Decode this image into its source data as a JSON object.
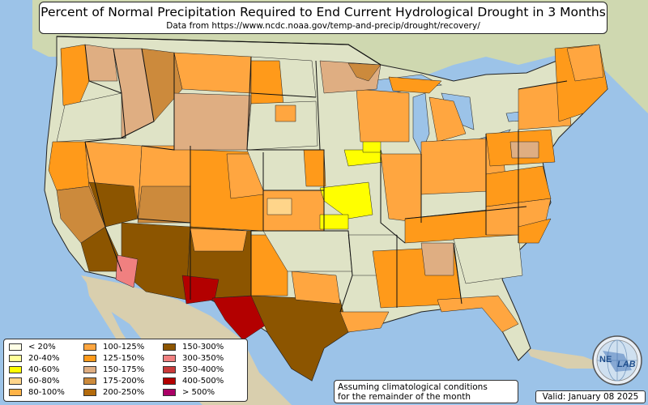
{
  "header": {
    "title": "Percent of Normal Precipitation Required to End Current Hydrological Drought in 3 Months",
    "subtitle": "Data from https://www.ncdc.noaa.gov/temp-and-precip/drought/recovery/"
  },
  "legend": {
    "items": [
      {
        "label": "< 20%",
        "color": "#ffffe6"
      },
      {
        "label": "20-40%",
        "color": "#ffff9a"
      },
      {
        "label": "40-60%",
        "color": "#ffff00"
      },
      {
        "label": "60-80%",
        "color": "#ffd58a"
      },
      {
        "label": "80-100%",
        "color": "#ffb347"
      },
      {
        "label": "100-125%",
        "color": "#ffa640"
      },
      {
        "label": "125-150%",
        "color": "#ff9a1a"
      },
      {
        "label": "150-175%",
        "color": "#dfae82"
      },
      {
        "label": "175-200%",
        "color": "#cc8a3c"
      },
      {
        "label": "200-250%",
        "color": "#b36b0d"
      },
      {
        "label": "150-300%",
        "color": "#8c5500"
      },
      {
        "label": "300-350%",
        "color": "#f08080"
      },
      {
        "label": "350-400%",
        "color": "#c93a3a"
      },
      {
        "label": "400-500%",
        "color": "#b30000"
      },
      {
        "label": "> 500%",
        "color": "#aa0066"
      }
    ]
  },
  "footer": {
    "note_line1": "Assuming climatological conditions",
    "note_line2": "for the remainder of the month",
    "valid": "Valid: January 08 2025"
  },
  "logo": {
    "text_left": "NE",
    "text_right": "LAB",
    "icon": "nexlab-globe-icon"
  },
  "colors": {
    "ocean": "#9cc3e8",
    "land": "#dfe3c6",
    "canada": "#cfd8b0",
    "mexico": "#d9cfae"
  }
}
